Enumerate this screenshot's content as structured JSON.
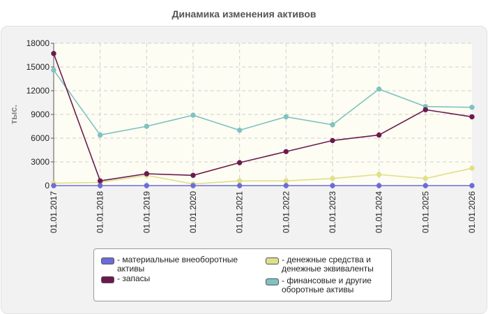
{
  "chart_data": {
    "type": "line",
    "title": "Динамика изменения активов",
    "ylabel": "тыс.",
    "xlabel": "",
    "categories": [
      "01.01.2017",
      "01.01.2018",
      "01.01.2019",
      "01.01.2020",
      "01.01.2021",
      "01.01.2022",
      "01.01.2023",
      "01.01.2024",
      "01.01.2025",
      "01.01.2026"
    ],
    "ylim": [
      0,
      18000
    ],
    "yticks": [
      "0",
      "3000",
      "6000",
      "9000",
      "12000",
      "15000",
      "18000"
    ],
    "grid": true,
    "legend_position": "bottom",
    "series": [
      {
        "name": "- материальные внеоборотные активы",
        "color": "#6c6cd8",
        "values": [
          0,
          0,
          0,
          0,
          0,
          0,
          0,
          0,
          0,
          0
        ]
      },
      {
        "name": "- запасы",
        "color": "#6b1a4e",
        "values": [
          16700,
          600,
          1500,
          1300,
          2900,
          4300,
          5700,
          6400,
          9600,
          8700
        ]
      },
      {
        "name": "- денежные средства и денежные эквиваленты",
        "color": "#e0df8a",
        "values": [
          300,
          400,
          1300,
          200,
          600,
          600,
          900,
          1400,
          900,
          2200
        ]
      },
      {
        "name": "- финансовые и другие оборотные активы",
        "color": "#7fc2c2",
        "values": [
          14600,
          6400,
          7500,
          8900,
          7000,
          8700,
          7700,
          12200,
          10000,
          9900
        ]
      }
    ]
  }
}
